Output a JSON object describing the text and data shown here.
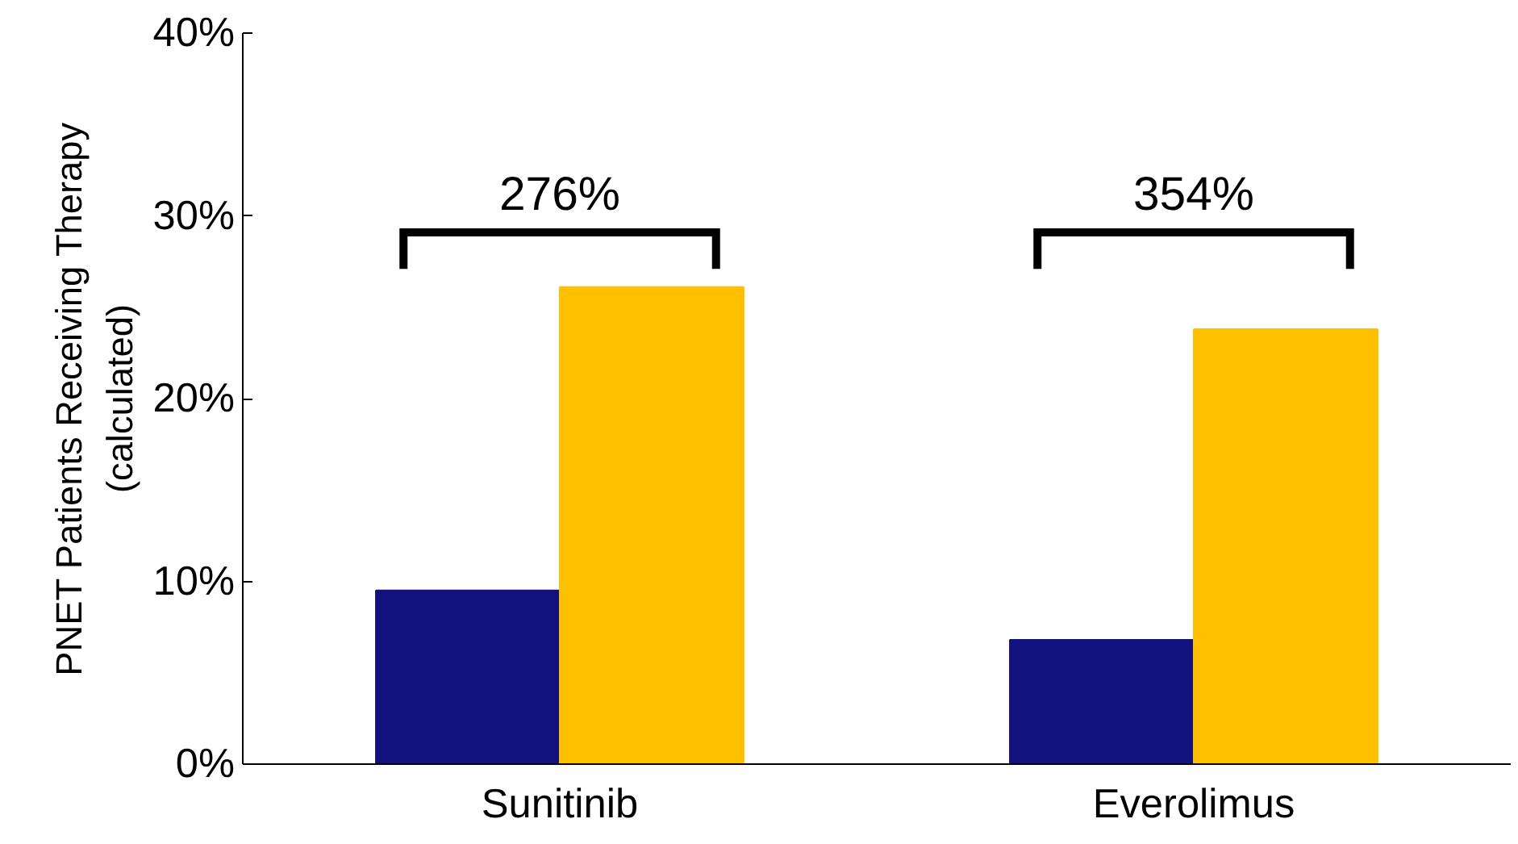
{
  "chart_data": {
    "type": "bar",
    "ylabel": "PNET Patients Receiving Therapy\n(calculated)",
    "categories": [
      "Sunitinib",
      "Everolimus"
    ],
    "series": [
      {
        "color": "#12127f",
        "values": [
          9.5,
          6.8
        ]
      },
      {
        "color": "#ffc000",
        "values": [
          26.1,
          23.8
        ]
      }
    ],
    "ylim": [
      0,
      40
    ],
    "yticks": [
      {
        "value": 0,
        "label": "0%"
      },
      {
        "value": 10,
        "label": "10%"
      },
      {
        "value": 20,
        "label": "20%"
      },
      {
        "value": 30,
        "label": "30%"
      },
      {
        "value": 40,
        "label": "40%"
      }
    ],
    "annotations": [
      "276%",
      "354%"
    ],
    "grid": false
  }
}
